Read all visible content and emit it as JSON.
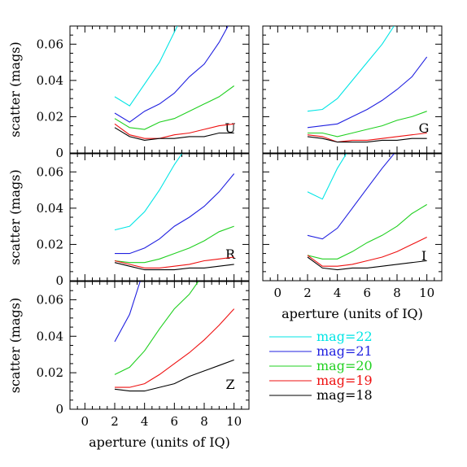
{
  "chart_data": [
    {
      "type": "line",
      "band": "U",
      "xlim": [
        -1,
        11
      ],
      "ylim": [
        0,
        0.07
      ],
      "xticks": [],
      "yticks": [
        "0",
        "0.02",
        "0.04",
        "0.06"
      ],
      "xlabel": "",
      "ylabel": "scatter (mags)",
      "series": [
        {
          "name": "mag=22",
          "color": "#00e5e5",
          "x": [
            2,
            3,
            4,
            5,
            6.2
          ],
          "y": [
            0.031,
            0.026,
            0.038,
            0.05,
            0.07
          ]
        },
        {
          "name": "mag=21",
          "color": "#2020e0",
          "x": [
            2,
            3,
            4,
            5,
            6,
            7,
            8,
            9,
            9.6
          ],
          "y": [
            0.022,
            0.017,
            0.023,
            0.027,
            0.033,
            0.042,
            0.049,
            0.061,
            0.07
          ]
        },
        {
          "name": "mag=20",
          "color": "#20d020",
          "x": [
            2,
            3,
            4,
            5,
            6,
            7,
            8,
            9,
            10
          ],
          "y": [
            0.019,
            0.014,
            0.013,
            0.017,
            0.019,
            0.023,
            0.027,
            0.031,
            0.037
          ]
        },
        {
          "name": "mag=19",
          "color": "#ee1010",
          "x": [
            2,
            3,
            4,
            5,
            6,
            7,
            8,
            9,
            10
          ],
          "y": [
            0.016,
            0.01,
            0.008,
            0.008,
            0.01,
            0.011,
            0.013,
            0.015,
            0.016
          ]
        },
        {
          "name": "mag=18",
          "color": "#000000",
          "x": [
            2,
            3,
            4,
            5,
            6,
            7,
            8,
            9,
            10
          ],
          "y": [
            0.014,
            0.009,
            0.007,
            0.008,
            0.008,
            0.009,
            0.009,
            0.011,
            0.011
          ]
        }
      ]
    },
    {
      "type": "line",
      "band": "G",
      "xlim": [
        -1,
        11
      ],
      "ylim": [
        0,
        0.07
      ],
      "xticks": [],
      "yticks": [],
      "xlabel": "",
      "ylabel": "",
      "series": [
        {
          "name": "mag=22",
          "color": "#00e5e5",
          "x": [
            2,
            3,
            4,
            5,
            6,
            7,
            7.8
          ],
          "y": [
            0.023,
            0.024,
            0.03,
            0.04,
            0.05,
            0.06,
            0.07
          ]
        },
        {
          "name": "mag=21",
          "color": "#2020e0",
          "x": [
            2,
            3,
            4,
            5,
            6,
            7,
            8,
            9,
            10
          ],
          "y": [
            0.014,
            0.015,
            0.016,
            0.02,
            0.024,
            0.029,
            0.035,
            0.042,
            0.053
          ]
        },
        {
          "name": "mag=20",
          "color": "#20d020",
          "x": [
            2,
            3,
            4,
            5,
            6,
            7,
            8,
            9,
            10
          ],
          "y": [
            0.011,
            0.011,
            0.009,
            0.011,
            0.013,
            0.015,
            0.018,
            0.02,
            0.023
          ]
        },
        {
          "name": "mag=19",
          "color": "#ee1010",
          "x": [
            2,
            3,
            4,
            5,
            6,
            7,
            8,
            9,
            10
          ],
          "y": [
            0.01,
            0.009,
            0.006,
            0.007,
            0.007,
            0.008,
            0.009,
            0.01,
            0.011
          ]
        },
        {
          "name": "mag=18",
          "color": "#000000",
          "x": [
            2,
            3,
            4,
            5,
            6,
            7,
            8,
            9,
            10
          ],
          "y": [
            0.009,
            0.008,
            0.006,
            0.006,
            0.006,
            0.007,
            0.007,
            0.008,
            0.008
          ]
        }
      ]
    },
    {
      "type": "line",
      "band": "R",
      "xlim": [
        -1,
        11
      ],
      "ylim": [
        0,
        0.07
      ],
      "xticks": [],
      "yticks": [
        "0",
        "0.02",
        "0.04",
        "0.06"
      ],
      "xlabel": "",
      "ylabel": "scatter (mags)",
      "series": [
        {
          "name": "mag=22",
          "color": "#00e5e5",
          "x": [
            2,
            3,
            4,
            5,
            6,
            6.5
          ],
          "y": [
            0.028,
            0.03,
            0.038,
            0.05,
            0.064,
            0.07
          ]
        },
        {
          "name": "mag=21",
          "color": "#2020e0",
          "x": [
            2,
            3,
            4,
            5,
            6,
            7,
            8,
            9,
            10
          ],
          "y": [
            0.015,
            0.015,
            0.018,
            0.023,
            0.03,
            0.035,
            0.041,
            0.049,
            0.059
          ]
        },
        {
          "name": "mag=20",
          "color": "#20d020",
          "x": [
            2,
            3,
            4,
            5,
            6,
            7,
            8,
            9,
            10
          ],
          "y": [
            0.011,
            0.01,
            0.01,
            0.012,
            0.015,
            0.018,
            0.022,
            0.027,
            0.03
          ]
        },
        {
          "name": "mag=19",
          "color": "#ee1010",
          "x": [
            2,
            3,
            4,
            5,
            6,
            7,
            8,
            9,
            10
          ],
          "y": [
            0.011,
            0.009,
            0.007,
            0.007,
            0.008,
            0.009,
            0.011,
            0.012,
            0.013
          ]
        },
        {
          "name": "mag=18",
          "color": "#000000",
          "x": [
            2,
            3,
            4,
            5,
            6,
            7,
            8,
            9,
            10
          ],
          "y": [
            0.01,
            0.008,
            0.006,
            0.006,
            0.006,
            0.007,
            0.007,
            0.008,
            0.009
          ]
        }
      ]
    },
    {
      "type": "line",
      "band": "I",
      "xlim": [
        -1,
        11
      ],
      "ylim": [
        0,
        0.07
      ],
      "xticks": [
        "0",
        "2",
        "4",
        "6",
        "8",
        "10"
      ],
      "yticks": [],
      "xlabel": "aperture (units of IQ)",
      "ylabel": "",
      "series": [
        {
          "name": "mag=22",
          "color": "#00e5e5",
          "x": [
            2,
            3,
            4,
            4.6
          ],
          "y": [
            0.049,
            0.045,
            0.062,
            0.07
          ]
        },
        {
          "name": "mag=21",
          "color": "#2020e0",
          "x": [
            2,
            3,
            4,
            5,
            6,
            7,
            7.8
          ],
          "y": [
            0.025,
            0.023,
            0.029,
            0.04,
            0.051,
            0.062,
            0.07
          ]
        },
        {
          "name": "mag=20",
          "color": "#20d020",
          "x": [
            2,
            3,
            4,
            5,
            6,
            7,
            8,
            9,
            10
          ],
          "y": [
            0.014,
            0.012,
            0.012,
            0.016,
            0.021,
            0.025,
            0.03,
            0.037,
            0.042
          ]
        },
        {
          "name": "mag=19",
          "color": "#ee1010",
          "x": [
            2,
            3,
            4,
            5,
            6,
            7,
            8,
            9,
            10
          ],
          "y": [
            0.014,
            0.008,
            0.008,
            0.009,
            0.011,
            0.013,
            0.016,
            0.02,
            0.024
          ]
        },
        {
          "name": "mag=18",
          "color": "#000000",
          "x": [
            2,
            3,
            4,
            5,
            6,
            7,
            8,
            9,
            10
          ],
          "y": [
            0.013,
            0.007,
            0.006,
            0.007,
            0.007,
            0.008,
            0.009,
            0.01,
            0.011
          ]
        }
      ]
    },
    {
      "type": "line",
      "band": "Z",
      "xlim": [
        -1,
        11
      ],
      "ylim": [
        0,
        0.07
      ],
      "xticks": [
        "0",
        "2",
        "4",
        "6",
        "8",
        "10"
      ],
      "yticks": [
        "0",
        "0.02",
        "0.04",
        "0.06"
      ],
      "xlabel": "aperture (units of IQ)",
      "ylabel": "scatter (mags)",
      "series": [
        {
          "name": "mag=22",
          "color": "#00e5e5",
          "x": [],
          "y": []
        },
        {
          "name": "mag=21",
          "color": "#2020e0",
          "x": [
            2,
            3,
            3.7
          ],
          "y": [
            0.037,
            0.052,
            0.07
          ]
        },
        {
          "name": "mag=20",
          "color": "#20d020",
          "x": [
            2,
            3,
            4,
            5,
            6,
            7,
            7.6
          ],
          "y": [
            0.019,
            0.023,
            0.032,
            0.044,
            0.055,
            0.063,
            0.07
          ]
        },
        {
          "name": "mag=19",
          "color": "#ee1010",
          "x": [
            2,
            3,
            4,
            5,
            6,
            7,
            8,
            9,
            10
          ],
          "y": [
            0.012,
            0.012,
            0.014,
            0.019,
            0.025,
            0.031,
            0.038,
            0.046,
            0.055
          ]
        },
        {
          "name": "mag=18",
          "color": "#000000",
          "x": [
            2,
            3,
            4,
            5,
            6,
            7,
            8,
            9,
            10
          ],
          "y": [
            0.011,
            0.01,
            0.01,
            0.012,
            0.014,
            0.018,
            0.021,
            0.024,
            0.027
          ]
        }
      ]
    }
  ],
  "legend": [
    {
      "label": "mag=22",
      "color": "#00e5e5"
    },
    {
      "label": "mag=21",
      "color": "#2020e0"
    },
    {
      "label": "mag=20",
      "color": "#20d020"
    },
    {
      "label": "mag=19",
      "color": "#ee1010"
    },
    {
      "label": "mag=18",
      "color": "#000000"
    }
  ]
}
